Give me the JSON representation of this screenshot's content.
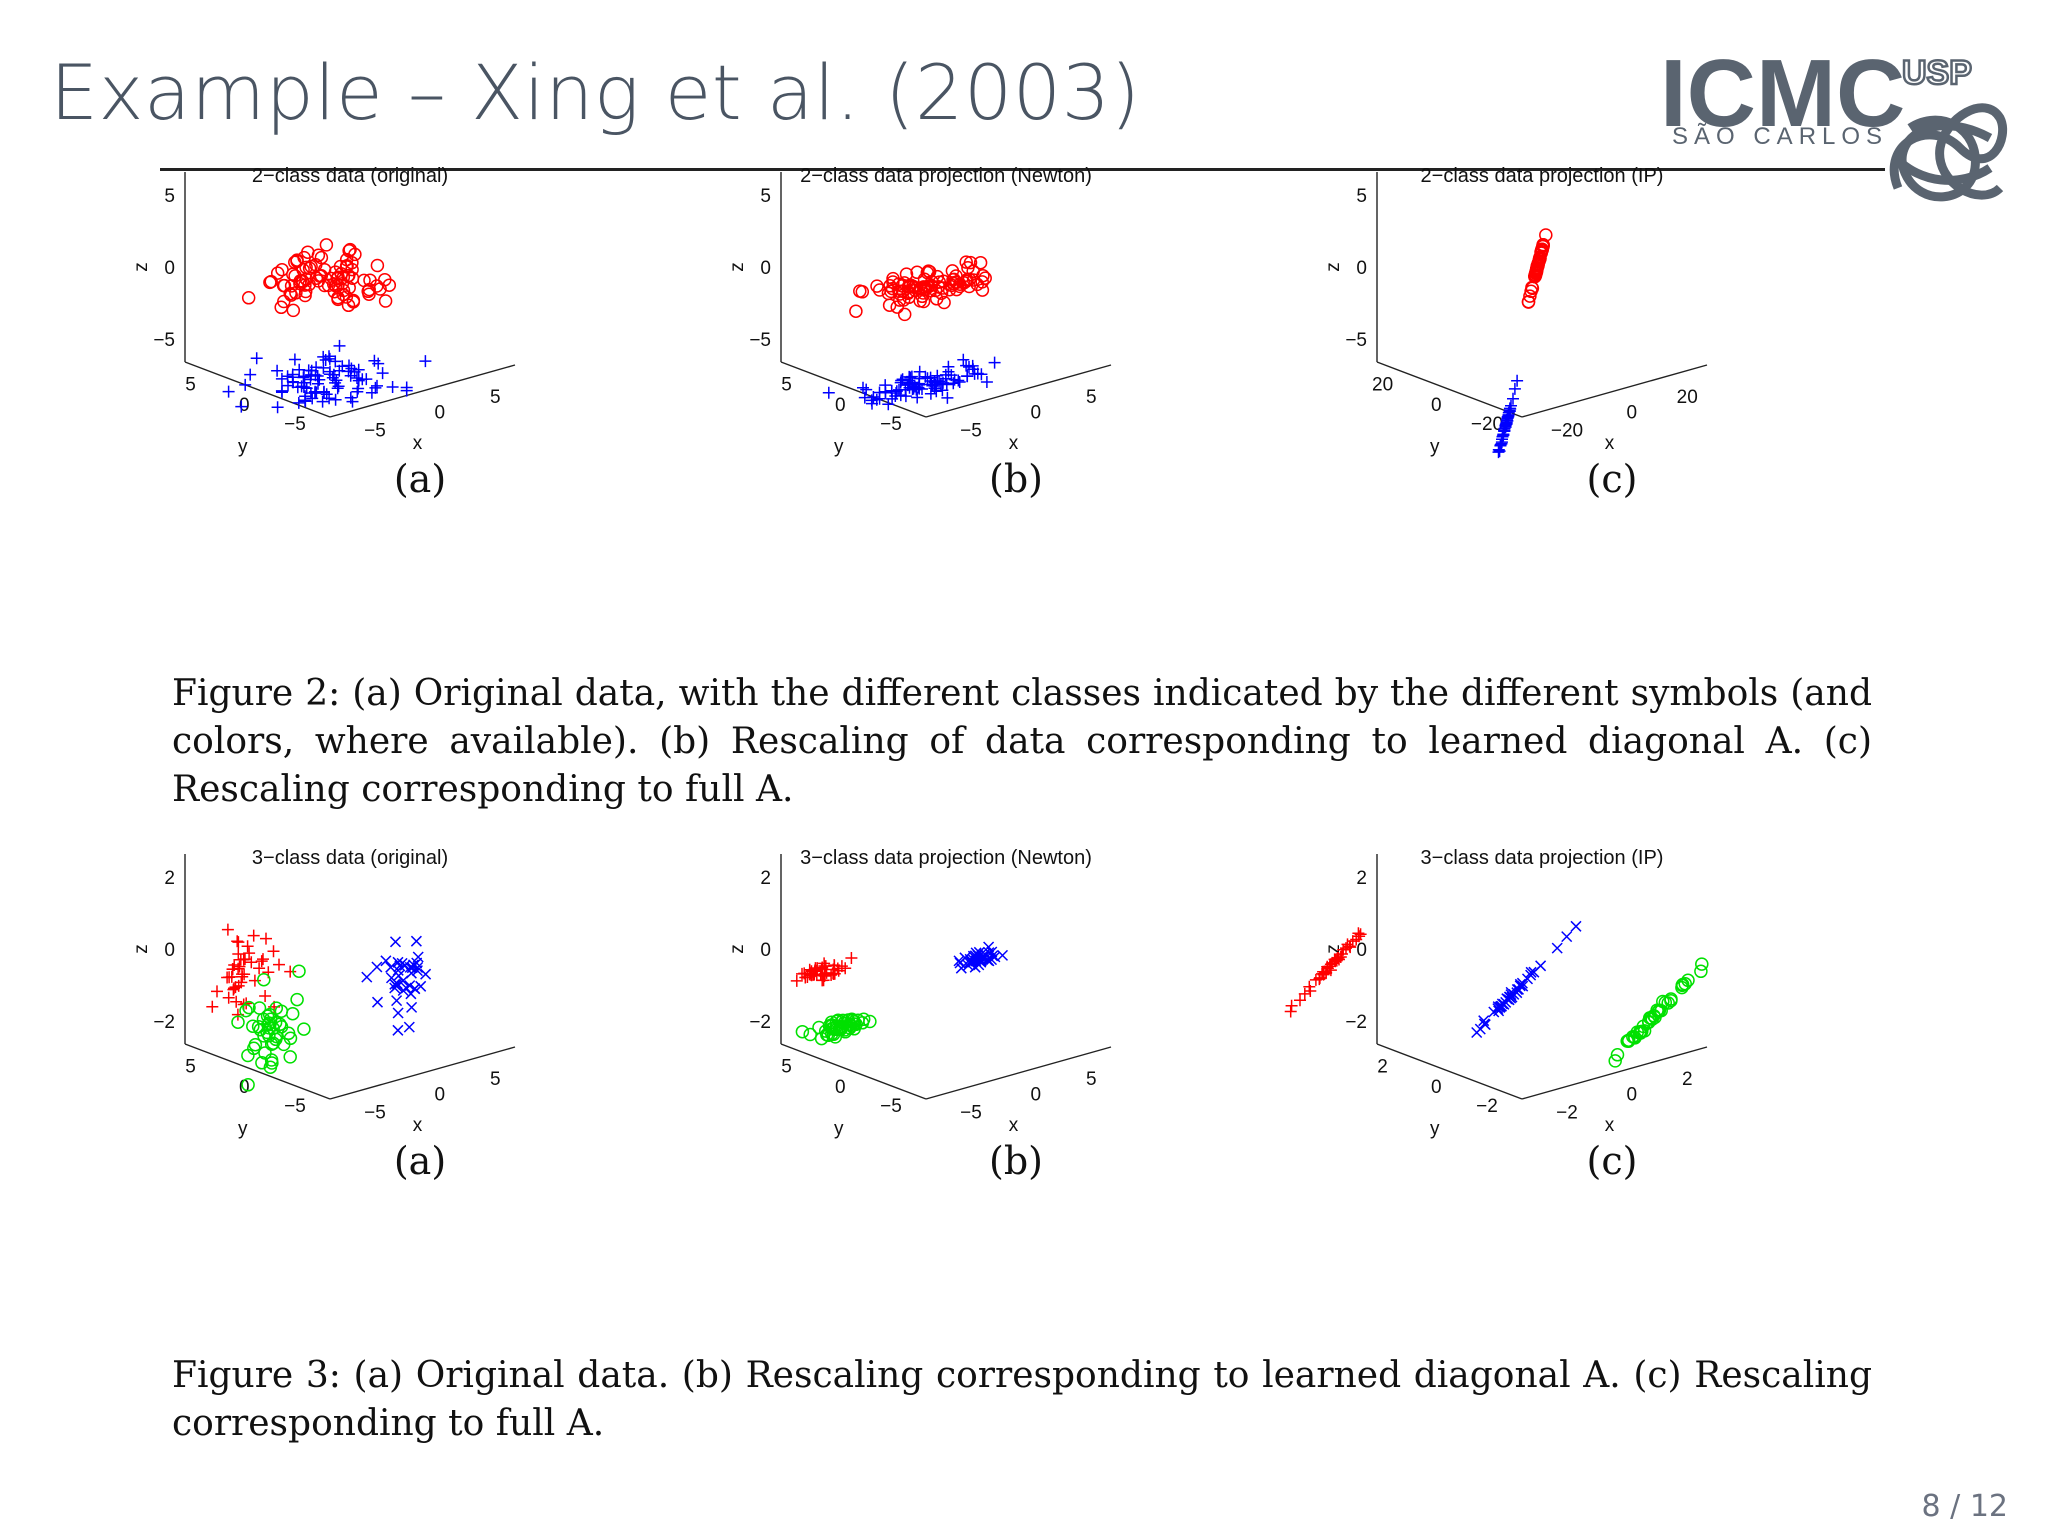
{
  "slide": {
    "title": "Example – Xing et al. (2003)",
    "page_number": "8 / 12",
    "logo": {
      "text": "ICMC",
      "subtitle": "SÃO CARLOS",
      "badge": "USP",
      "color": "#5a6470"
    }
  },
  "figure2": {
    "caption": "Figure 2: (a) Original data, with the different classes indicated by the different symbols (and colors, where available). (b) Rescaling of data corresponding to learned diagonal A. (c) Rescaling corresponding to full A."
  },
  "figure3": {
    "caption": "Figure 3: (a) Original data. (b) Rescaling corresponding to learned diagonal A. (c) Rescaling corresponding to full A."
  },
  "chart_data": [
    {
      "type": "scatter",
      "title": "2−class data (original)",
      "panel_label": "(a)",
      "axis_labels": {
        "x": "x",
        "y": "y",
        "z": "z"
      },
      "ticks": {
        "x": [
          "−5",
          "0",
          "5"
        ],
        "y": [
          "5",
          "0",
          "−5"
        ],
        "z": [
          "5",
          "0",
          "−5"
        ]
      },
      "xlim": [
        -8,
        8
      ],
      "ylim": [
        -8,
        8
      ],
      "zlim": [
        -8,
        8
      ],
      "series": [
        {
          "marker": "circle",
          "color": "#ff0000",
          "center": [
            0,
            0,
            3.5
          ],
          "spread": [
            2.2,
            2.2,
            1.4
          ],
          "count": 90
        },
        {
          "marker": "plus",
          "color": "#0000ff",
          "center": [
            0,
            0,
            -5
          ],
          "spread": [
            2.8,
            2.2,
            1.0
          ],
          "count": 90
        }
      ]
    },
    {
      "type": "scatter",
      "title": "2−class data projection (Newton)",
      "panel_label": "(b)",
      "axis_labels": {
        "x": "x",
        "y": "y",
        "z": "z"
      },
      "ticks": {
        "x": [
          "−5",
          "0",
          "5"
        ],
        "y": [
          "5",
          "0",
          "−5"
        ],
        "z": [
          "5",
          "0",
          "−5"
        ]
      },
      "xlim": [
        -8,
        8
      ],
      "ylim": [
        -8,
        8
      ],
      "zlim": [
        -8,
        8
      ],
      "series": [
        {
          "marker": "circle",
          "color": "#ff0000",
          "center": [
            0,
            0,
            3
          ],
          "spread": [
            2.4,
            1.2,
            0.6
          ],
          "count": 90
        },
        {
          "marker": "plus",
          "color": "#0000ff",
          "center": [
            0,
            0,
            -5.2
          ],
          "spread": [
            2.6,
            1.2,
            0.5
          ],
          "count": 90
        }
      ]
    },
    {
      "type": "scatter",
      "title": "2−class data projection (IP)",
      "panel_label": "(c)",
      "axis_labels": {
        "x": "x",
        "y": "y",
        "z": "z"
      },
      "ticks": {
        "x": [
          "−20",
          "0",
          "20"
        ],
        "y": [
          "20",
          "0",
          "−20"
        ],
        "z": [
          "5",
          "0",
          "−5"
        ]
      },
      "xlim": [
        -30,
        30
      ],
      "ylim": [
        -30,
        30
      ],
      "zlim": [
        -8,
        8
      ],
      "series": [
        {
          "marker": "circle",
          "color": "#ff0000",
          "center": [
            12,
            12,
            1.2
          ],
          "spread": [
            3,
            3,
            0.4
          ],
          "count": 50,
          "linear": true
        },
        {
          "marker": "plus",
          "color": "#0000ff",
          "center": [
            -12,
            -12,
            -5
          ],
          "spread": [
            3,
            3,
            0.4
          ],
          "count": 50,
          "linear": true
        }
      ]
    },
    {
      "type": "scatter",
      "title": "3−class data (original)",
      "panel_label": "(a)",
      "axis_labels": {
        "x": "x",
        "y": "y",
        "z": "z"
      },
      "ticks": {
        "x": [
          "−5",
          "0",
          "5"
        ],
        "y": [
          "5",
          "0",
          "−5"
        ],
        "z": [
          "2",
          "0",
          "−2"
        ]
      },
      "xlim": [
        -8,
        8
      ],
      "ylim": [
        -8,
        8
      ],
      "zlim": [
        -3,
        3
      ],
      "series": [
        {
          "marker": "plus",
          "color": "#ff0000",
          "center": [
            -2,
            2,
            1.0
          ],
          "spread": [
            1.2,
            1.2,
            1.2
          ],
          "count": 45
        },
        {
          "marker": "circle",
          "color": "#00e000",
          "center": [
            -1.5,
            1.5,
            -0.8
          ],
          "spread": [
            1.2,
            1.2,
            1.5
          ],
          "count": 45
        },
        {
          "marker": "x",
          "color": "#0000ff",
          "center": [
            4,
            1,
            -0.3
          ],
          "spread": [
            0.8,
            0.8,
            1.1
          ],
          "count": 40
        }
      ]
    },
    {
      "type": "scatter",
      "title": "3−class data projection (Newton)",
      "panel_label": "(b)",
      "axis_labels": {
        "x": "x",
        "y": "y",
        "z": "z"
      },
      "ticks": {
        "x": [
          "−5",
          "0",
          "5"
        ],
        "y": [
          "5",
          "0",
          "−5"
        ],
        "z": [
          "2",
          "0",
          "−2"
        ]
      },
      "xlim": [
        -8,
        8
      ],
      "ylim": [
        -8,
        8
      ],
      "zlim": [
        -3,
        3
      ],
      "series": [
        {
          "marker": "plus",
          "color": "#ff0000",
          "center": [
            -3,
            2,
            1.2
          ],
          "spread": [
            1.0,
            0.4,
            0.25
          ],
          "count": 45
        },
        {
          "marker": "circle",
          "color": "#00e000",
          "center": [
            -2,
            2,
            -0.7
          ],
          "spread": [
            1.2,
            0.4,
            0.2
          ],
          "count": 45
        },
        {
          "marker": "x",
          "color": "#0000ff",
          "center": [
            3.5,
            1.5,
            0.4
          ],
          "spread": [
            0.9,
            0.4,
            0.2
          ],
          "count": 40
        }
      ]
    },
    {
      "type": "scatter",
      "title": "3−class data projection (IP)",
      "panel_label": "(c)",
      "axis_labels": {
        "x": "x",
        "y": "y",
        "z": "z"
      },
      "ticks": {
        "x": [
          "−2",
          "0",
          "2"
        ],
        "y": [
          "2",
          "0",
          "−2"
        ],
        "z": [
          "2",
          "0",
          "−2"
        ]
      },
      "xlim": [
        -3.2,
        3.2
      ],
      "ylim": [
        -3.2,
        3.2
      ],
      "zlim": [
        -3,
        3
      ],
      "series": [
        {
          "marker": "plus",
          "color": "#ff0000",
          "center": [
            -2.2,
            1.4,
            1.6
          ],
          "spread": [
            0.5,
            0.2,
            0.3
          ],
          "count": 40,
          "linear": true
        },
        {
          "marker": "x",
          "color": "#0000ff",
          "center": [
            0,
            0.2,
            0.2
          ],
          "spread": [
            0.5,
            0.2,
            0.3
          ],
          "count": 40,
          "linear": true
        },
        {
          "marker": "circle",
          "color": "#00e000",
          "center": [
            1.8,
            -0.6,
            -1.0
          ],
          "spread": [
            0.5,
            0.2,
            0.3
          ],
          "count": 40,
          "linear": true
        }
      ]
    }
  ]
}
